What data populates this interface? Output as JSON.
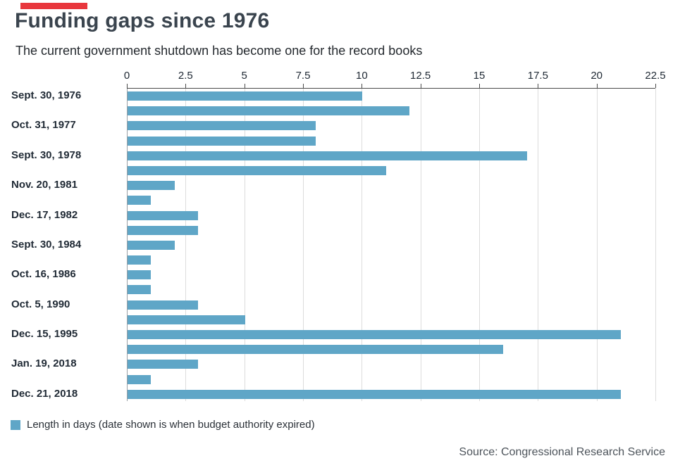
{
  "header": {
    "title": "Funding gaps since 1976",
    "subtitle": "The current government shutdown has become one for the record books"
  },
  "legend": {
    "label": "Length in days (date shown is when budget authority expired)"
  },
  "source": "Source: Congressional Research Service",
  "colors": {
    "bar": "#5fa6c7",
    "brand_bar": "#e8373d",
    "title": "#3a444e",
    "gridline": "#dcdcdc"
  },
  "chart_data": {
    "type": "bar",
    "orientation": "horizontal",
    "title": "Funding gaps since 1976",
    "xlabel": "",
    "ylabel": "",
    "xlim": [
      0,
      22.5
    ],
    "xticks": [
      0,
      2.5,
      5,
      7.5,
      10,
      12.5,
      15,
      17.5,
      20,
      22.5
    ],
    "grid": "vertical",
    "legend_position": "bottom-left",
    "bar_color": "#5fa6c7",
    "rows": [
      {
        "label": "Sept. 30, 1976",
        "value": 10
      },
      {
        "label": "",
        "value": 12
      },
      {
        "label": "Oct. 31, 1977",
        "value": 8
      },
      {
        "label": "",
        "value": 8
      },
      {
        "label": "Sept. 30, 1978",
        "value": 17
      },
      {
        "label": "",
        "value": 11
      },
      {
        "label": "Nov. 20, 1981",
        "value": 2
      },
      {
        "label": "",
        "value": 1
      },
      {
        "label": "Dec. 17, 1982",
        "value": 3
      },
      {
        "label": "",
        "value": 3
      },
      {
        "label": "Sept. 30, 1984",
        "value": 2
      },
      {
        "label": "",
        "value": 1
      },
      {
        "label": "Oct. 16, 1986",
        "value": 1
      },
      {
        "label": "",
        "value": 1
      },
      {
        "label": "Oct. 5, 1990",
        "value": 3
      },
      {
        "label": "",
        "value": 5
      },
      {
        "label": "Dec. 15, 1995",
        "value": 21
      },
      {
        "label": "",
        "value": 16
      },
      {
        "label": "Jan. 19, 2018",
        "value": 3
      },
      {
        "label": "",
        "value": 1
      },
      {
        "label": "Dec. 21, 2018",
        "value": 21
      }
    ]
  }
}
